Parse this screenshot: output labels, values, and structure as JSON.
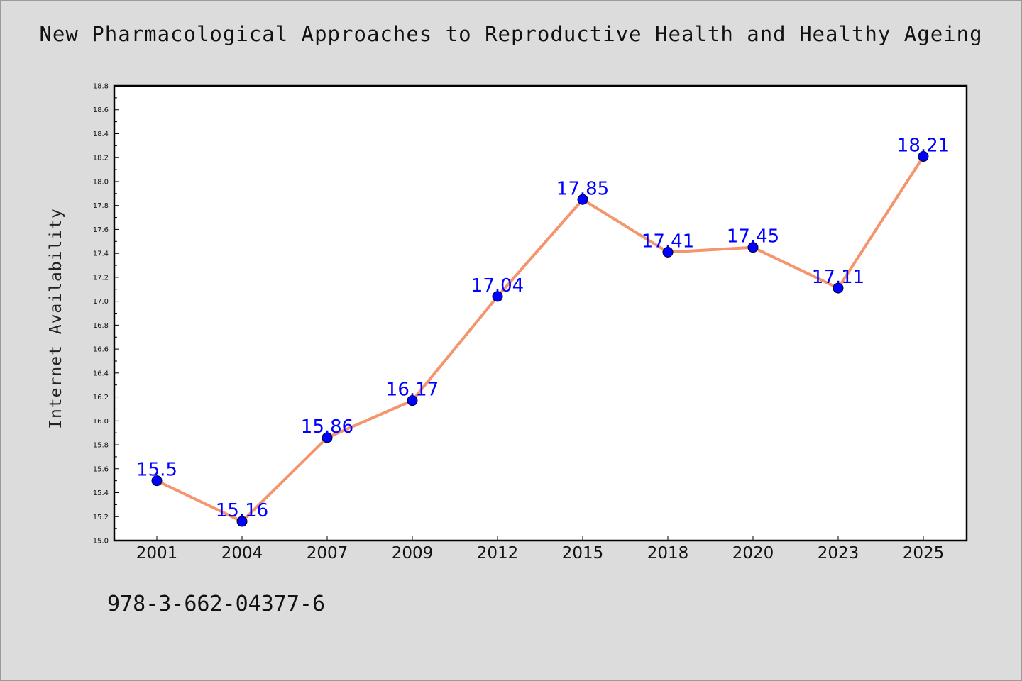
{
  "chart_data": {
    "type": "line",
    "title": "New Pharmacological Approaches to Reproductive Health and Healthy Ageing",
    "xlabel": "",
    "ylabel": "Internet Availability",
    "categories": [
      "2001",
      "2004",
      "2007",
      "2009",
      "2012",
      "2015",
      "2018",
      "2020",
      "2023",
      "2025"
    ],
    "series": [
      {
        "values": [
          15.5,
          15.16,
          15.86,
          16.17,
          17.04,
          17.85,
          17.41,
          17.45,
          17.11,
          18.21
        ]
      }
    ],
    "ylim": [
      15.0,
      18.8
    ],
    "yticks": [
      "15.0",
      "15.2",
      "15.4",
      "15.6",
      "15.8",
      "16.0",
      "16.2",
      "16.4",
      "16.6",
      "16.8",
      "17.0",
      "17.2",
      "17.4",
      "17.6",
      "17.8",
      "18.0",
      "18.2",
      "18.4",
      "18.6",
      "18.8"
    ],
    "data_labels": [
      "15.5",
      "15.16",
      "15.86",
      "16.17",
      "17.04",
      "17.85",
      "17.41",
      "17.45",
      "17.11",
      "18.21"
    ],
    "grid": false,
    "legend": "none",
    "line_color": "#f4956e",
    "marker_color": "#0000ff",
    "label_color": "#0000ff",
    "background": "#dcdcdc",
    "plot_background": "#ffffff"
  },
  "footer": {
    "code": "978-3-662-04377-6"
  }
}
